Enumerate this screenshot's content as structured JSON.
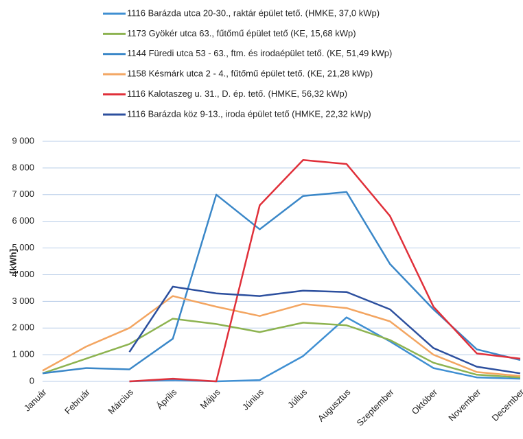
{
  "chart_data": {
    "type": "line",
    "y_label": "[kWh]",
    "categories": [
      "Január",
      "Február",
      "Március",
      "Április",
      "Május",
      "Június",
      "Július",
      "Augusztus",
      "Szeptember",
      "Október",
      "November",
      "December"
    ],
    "series": [
      {
        "name": "1116 Barázda utca 20-30., raktár épület tető. (HMKE, 37,0 kWp)",
        "color": "#3f8fd2",
        "values": [
          null,
          null,
          0,
          50,
          0,
          50,
          950,
          2400,
          1500,
          500,
          150,
          100
        ]
      },
      {
        "name": "1173 Gyökér utca 63., fűtőmű épület tető (KE, 15,68 kWp)",
        "color": "#8db350",
        "values": [
          300,
          850,
          1400,
          2350,
          2150,
          1850,
          2200,
          2100,
          1550,
          700,
          250,
          150
        ]
      },
      {
        "name": "1144 Füredi utca 53 - 63., ftm. és irodaépület tető. (KE, 51,49 kWp)",
        "color": "#3a87c8",
        "values": [
          300,
          500,
          450,
          1600,
          7000,
          5700,
          6950,
          7100,
          4400,
          2700,
          1200,
          800
        ]
      },
      {
        "name": "1158 Késmárk utca 2 - 4., fűtőmű épület tető. (KE, 21,28 kWp)",
        "color": "#f3a561",
        "values": [
          400,
          1300,
          2000,
          3200,
          2800,
          2450,
          2900,
          2750,
          2250,
          1000,
          350,
          200
        ]
      },
      {
        "name": "1116 Kalotaszeg u. 31., D. ép. tető. (HMKE, 56,32 kWp)",
        "color": "#e0303a",
        "values": [
          null,
          null,
          0,
          100,
          0,
          6600,
          8300,
          8150,
          6200,
          2800,
          1050,
          850
        ]
      },
      {
        "name": "1116 Barázda köz 9-13., iroda épület tető (HMKE, 22,32 kWp)",
        "color": "#2c4f9e",
        "values": [
          null,
          null,
          1100,
          3550,
          3300,
          3200,
          3400,
          3350,
          2700,
          1250,
          550,
          300
        ]
      }
    ],
    "ylim": [
      0,
      9000
    ],
    "yticks": [
      0,
      {
        "value": 1000,
        "label": "1 000"
      },
      {
        "value": 2000,
        "label": "2 000"
      },
      {
        "value": 3000,
        "label": "3 000"
      },
      {
        "value": 4000,
        "label": "4 000"
      },
      {
        "value": 5000,
        "label": "5 000"
      },
      {
        "value": 6000,
        "label": "6 000"
      },
      {
        "value": 7000,
        "label": "7 000"
      },
      {
        "value": 8000,
        "label": "8 000"
      },
      {
        "value": 9000,
        "label": "9 000"
      }
    ],
    "grid": true
  }
}
